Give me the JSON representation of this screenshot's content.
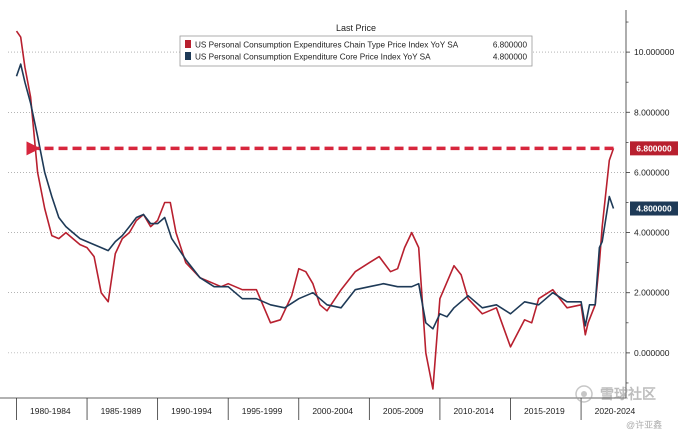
{
  "chart_data": {
    "type": "line",
    "legend": {
      "title": "Last Price",
      "placement": "top-center"
    },
    "series": [
      {
        "name": "US Personal Consumption Expenditures Chain Type Price Index YoY SA",
        "last_value_label": "6.800000",
        "color": "#b8202f",
        "x": [
          1980.0,
          1980.3,
          1980.6,
          1981.0,
          1981.5,
          1982.0,
          1982.5,
          1983.0,
          1983.5,
          1984.0,
          1984.5,
          1985.0,
          1985.5,
          1986.0,
          1986.5,
          1987.0,
          1987.5,
          1988.0,
          1988.5,
          1989.0,
          1989.5,
          1990.0,
          1990.5,
          1990.9,
          1991.3,
          1992.0,
          1993.0,
          1994.0,
          1994.5,
          1995.0,
          1996.0,
          1997.0,
          1998.0,
          1998.7,
          1999.5,
          2000.0,
          2000.5,
          2001.0,
          2001.5,
          2002.0,
          2003.0,
          2004.0,
          2005.0,
          2005.7,
          2006.5,
          2007.0,
          2007.5,
          2008.0,
          2008.5,
          2009.0,
          2009.5,
          2010.0,
          2011.0,
          2011.5,
          2012.0,
          2013.0,
          2014.0,
          2015.0,
          2016.0,
          2016.5,
          2017.0,
          2018.0,
          2019.0,
          2020.0,
          2020.3,
          2020.5,
          2021.0,
          2021.3,
          2021.5,
          2022.0,
          2022.3
        ],
        "y": [
          10.7,
          10.5,
          9.5,
          8.5,
          6.0,
          4.8,
          3.9,
          3.8,
          4.0,
          3.8,
          3.6,
          3.5,
          3.2,
          2.0,
          1.7,
          3.3,
          3.8,
          4.0,
          4.4,
          4.6,
          4.2,
          4.4,
          5.0,
          5.0,
          4.0,
          3.0,
          2.5,
          2.3,
          2.2,
          2.3,
          2.1,
          2.1,
          1.0,
          1.1,
          1.9,
          2.8,
          2.7,
          2.3,
          1.6,
          1.4,
          2.1,
          2.7,
          3.0,
          3.2,
          2.7,
          2.8,
          3.5,
          4.0,
          3.5,
          0.0,
          -1.2,
          1.8,
          2.9,
          2.6,
          1.8,
          1.3,
          1.5,
          0.2,
          1.1,
          1.0,
          1.8,
          2.1,
          1.5,
          1.6,
          0.6,
          1.0,
          1.6,
          3.0,
          4.2,
          6.4,
          6.8
        ]
      },
      {
        "name": "US Personal Consumption Expenditure Core Price Index YoY SA",
        "last_value_label": "4.800000",
        "color": "#1e3a57",
        "x": [
          1980.0,
          1980.3,
          1980.6,
          1981.0,
          1981.5,
          1982.0,
          1982.5,
          1983.0,
          1983.5,
          1984.0,
          1984.5,
          1985.0,
          1985.5,
          1986.0,
          1986.5,
          1987.0,
          1987.5,
          1988.0,
          1988.5,
          1989.0,
          1989.5,
          1990.0,
          1990.5,
          1991.0,
          1992.0,
          1993.0,
          1994.0,
          1995.0,
          1996.0,
          1997.0,
          1998.0,
          1999.0,
          2000.0,
          2001.0,
          2002.0,
          2003.0,
          2004.0,
          2005.0,
          2006.0,
          2007.0,
          2008.0,
          2008.5,
          2009.0,
          2009.5,
          2010.0,
          2010.5,
          2011.0,
          2012.0,
          2013.0,
          2014.0,
          2015.0,
          2016.0,
          2017.0,
          2018.0,
          2019.0,
          2020.0,
          2020.3,
          2020.6,
          2021.0,
          2021.3,
          2021.5,
          2022.0,
          2022.3
        ],
        "y": [
          9.2,
          9.6,
          9.0,
          8.3,
          7.2,
          6.0,
          5.2,
          4.5,
          4.2,
          4.0,
          3.8,
          3.7,
          3.6,
          3.5,
          3.4,
          3.7,
          3.9,
          4.2,
          4.5,
          4.6,
          4.3,
          4.3,
          4.5,
          3.8,
          3.1,
          2.5,
          2.2,
          2.2,
          1.8,
          1.8,
          1.6,
          1.5,
          1.8,
          2.0,
          1.6,
          1.5,
          2.1,
          2.2,
          2.3,
          2.2,
          2.2,
          2.3,
          1.0,
          0.8,
          1.3,
          1.2,
          1.5,
          1.9,
          1.5,
          1.6,
          1.3,
          1.7,
          1.6,
          2.0,
          1.7,
          1.7,
          0.9,
          1.6,
          1.6,
          3.5,
          3.7,
          5.2,
          4.8
        ]
      }
    ],
    "x_tick_labels": [
      "1980-1984",
      "1985-1989",
      "1990-1994",
      "1995-1999",
      "2000-2004",
      "2005-2009",
      "2010-2014",
      "2015-2019",
      "2020-2024"
    ],
    "x_tick_positions": [
      1982.4,
      1987.4,
      1992.4,
      1997.4,
      2002.4,
      2007.4,
      2012.4,
      2017.4,
      2022.4
    ],
    "x_period_boundaries": [
      1980,
      1985,
      1990,
      1995,
      2000,
      2005,
      2010,
      2015,
      2020,
      2025
    ],
    "xlim": [
      1979.4,
      2022.9
    ],
    "y_ticks": [
      0,
      2,
      4,
      6,
      8,
      10
    ],
    "y_tick_labels": [
      "0.000000",
      "2.000000",
      "4.000000",
      "6.000000",
      "8.000000",
      "10.000000"
    ],
    "ylim": [
      -1.5,
      11.4
    ],
    "grid": "dotted-horizontal",
    "reference_line": {
      "y": 6.8,
      "from_x": 1981.5,
      "to_x": 2022.3,
      "style": "dashed-arrow",
      "color": "#d7263d"
    },
    "title": "",
    "xlabel": "",
    "ylabel": ""
  },
  "watermark": {
    "logo_text": "雪球社区",
    "author_text": "@许亚鑫"
  }
}
